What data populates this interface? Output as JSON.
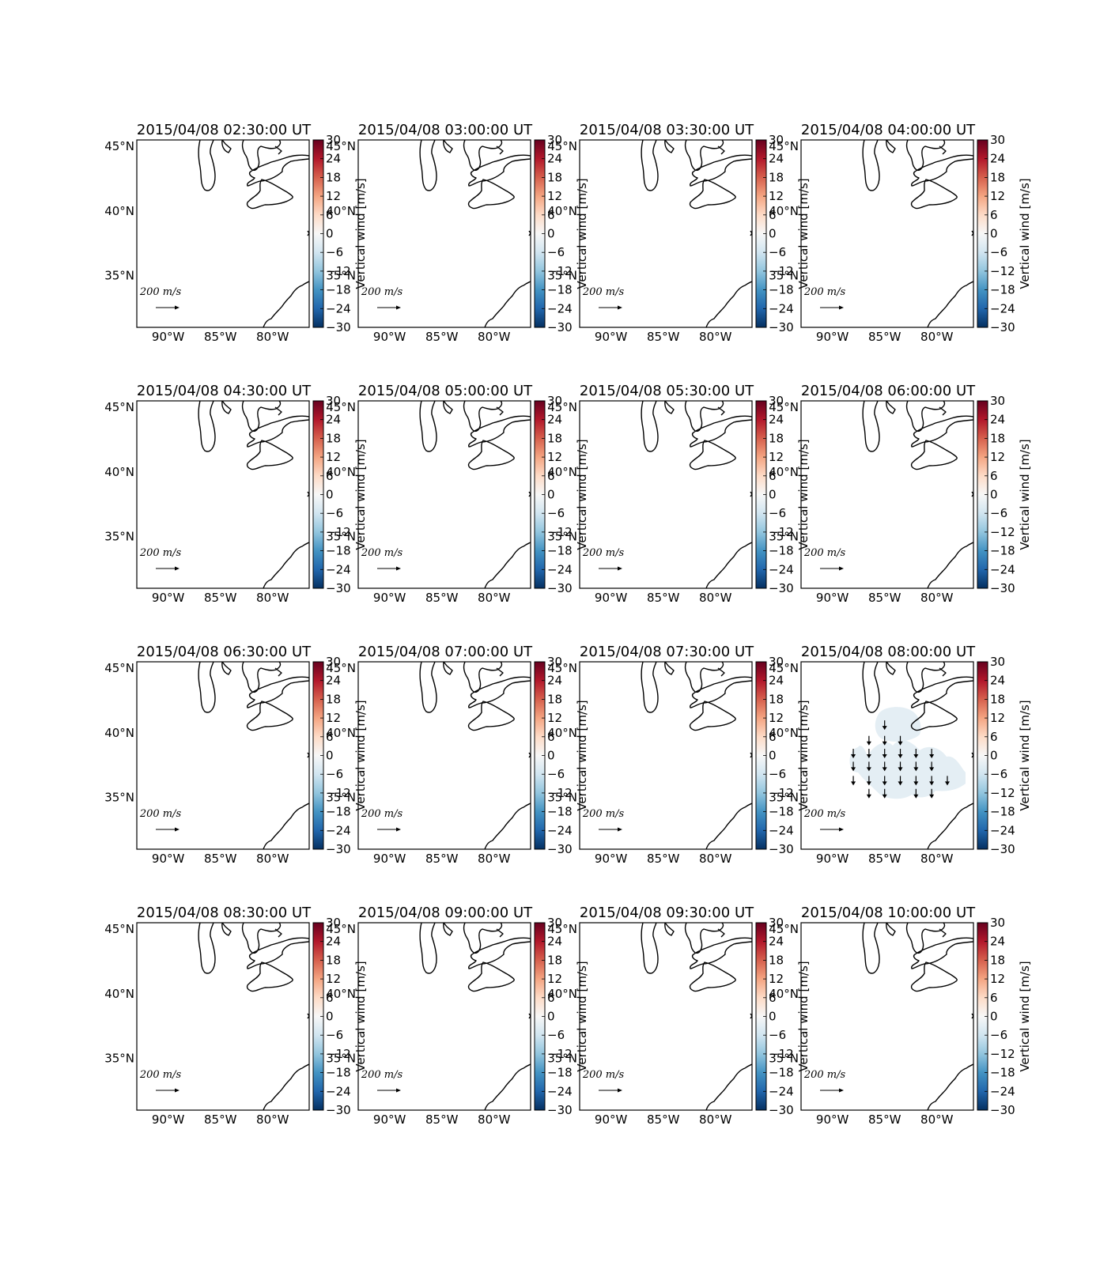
{
  "figure": {
    "panel_titles": [
      "2015/04/08 02:30:00 UT",
      "2015/04/08 03:00:00 UT",
      "2015/04/08 03:30:00 UT",
      "2015/04/08 04:00:00 UT",
      "2015/04/08 04:30:00 UT",
      "2015/04/08 05:00:00 UT",
      "2015/04/08 05:30:00 UT",
      "2015/04/08 06:00:00 UT",
      "2015/04/08 06:30:00 UT",
      "2015/04/08 07:00:00 UT",
      "2015/04/08 07:30:00 UT",
      "2015/04/08 08:00:00 UT",
      "2015/04/08 08:30:00 UT",
      "2015/04/08 09:00:00 UT",
      "2015/04/08 09:30:00 UT",
      "2015/04/08 10:00:00 UT"
    ],
    "lat_ticks": [
      "45°N",
      "40°N",
      "35°N"
    ],
    "lon_ticks": [
      "90°W",
      "85°W",
      "80°W"
    ],
    "colorbar_ticks": [
      "30",
      "24",
      "18",
      "12",
      "6",
      "0",
      "−6",
      "−12",
      "−18",
      "−24",
      "−30"
    ],
    "colorbar_label": "Vertical wind [m/s]",
    "quiver_key_label": "200 m/s",
    "colormap": [
      "#053061",
      "#2166ac",
      "#4393c3",
      "#92c5de",
      "#d1e5f0",
      "#f7f7f7",
      "#fddbc7",
      "#f4a582",
      "#d6604d",
      "#b2182b",
      "#67001f"
    ]
  },
  "chart_data": {
    "type": "heatmap",
    "extent": {
      "lon": [
        -93,
        -76.5
      ],
      "lat": [
        31,
        45.5
      ]
    },
    "colorbar_range": [
      -30,
      30
    ],
    "active_panel": "2015/04/08 08:00:00 UT",
    "active_vertical_wind": -3,
    "active_vectors": [
      {
        "lon": -85,
        "lat": 40.6
      },
      {
        "lon": -86.5,
        "lat": 39.4
      },
      {
        "lon": -85,
        "lat": 39.4
      },
      {
        "lon": -83.5,
        "lat": 39.4
      },
      {
        "lon": -88,
        "lat": 38.4
      },
      {
        "lon": -86.5,
        "lat": 38.4
      },
      {
        "lon": -85,
        "lat": 38.4
      },
      {
        "lon": -83.5,
        "lat": 38.4
      },
      {
        "lon": -82,
        "lat": 38.4
      },
      {
        "lon": -80.5,
        "lat": 38.4
      },
      {
        "lon": -88,
        "lat": 37.4
      },
      {
        "lon": -86.5,
        "lat": 37.4
      },
      {
        "lon": -85,
        "lat": 37.4
      },
      {
        "lon": -83.5,
        "lat": 37.4
      },
      {
        "lon": -82,
        "lat": 37.4
      },
      {
        "lon": -80.5,
        "lat": 37.4
      },
      {
        "lon": -88,
        "lat": 36.3
      },
      {
        "lon": -86.5,
        "lat": 36.3
      },
      {
        "lon": -85,
        "lat": 36.3
      },
      {
        "lon": -83.5,
        "lat": 36.3
      },
      {
        "lon": -82,
        "lat": 36.3
      },
      {
        "lon": -80.5,
        "lat": 36.3
      },
      {
        "lon": -79,
        "lat": 36.3
      },
      {
        "lon": -86.5,
        "lat": 35.3
      },
      {
        "lon": -85,
        "lat": 35.3
      },
      {
        "lon": -82,
        "lat": 35.3
      },
      {
        "lon": -80.5,
        "lat": 35.3
      }
    ]
  }
}
